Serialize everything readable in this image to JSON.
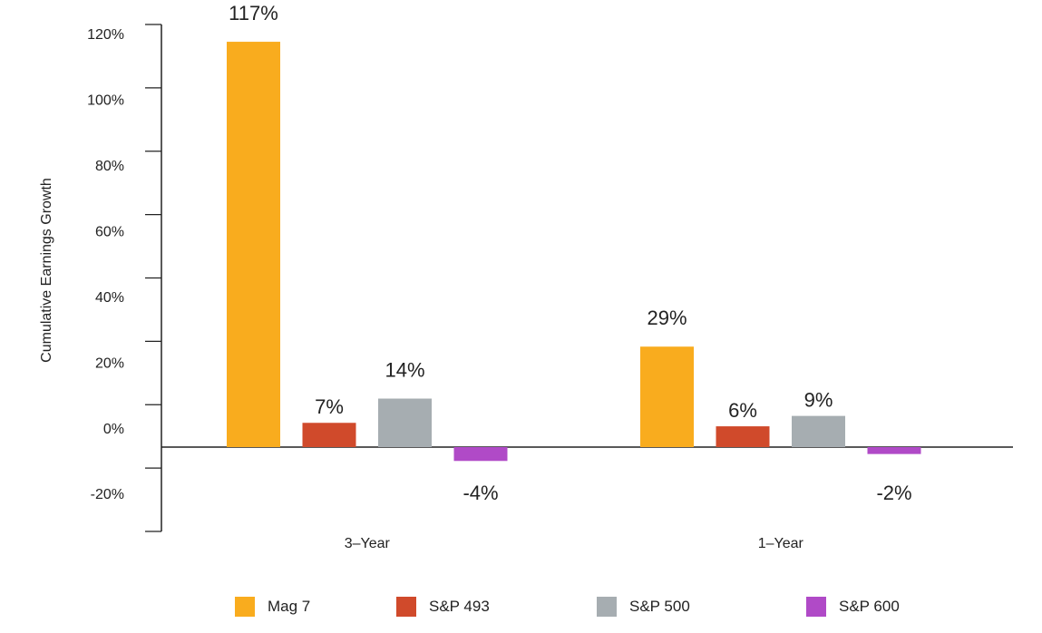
{
  "chart_data": {
    "type": "bar",
    "ylabel": "Cumulative Earnings Growth",
    "ylim": [
      -0.2,
      1.2
    ],
    "yticks": [
      "120%",
      "100%",
      "80%",
      "60%",
      "40%",
      "20%",
      "0%",
      "-20%"
    ],
    "categories": [
      "3–Year",
      "1–Year"
    ],
    "series": [
      {
        "name": "Mag 7",
        "color": "#F9AC1E",
        "values": [
          1.17,
          0.29
        ],
        "labels": [
          "117%",
          "29%"
        ]
      },
      {
        "name": "S&P 493",
        "color": "#D04A2B",
        "values": [
          0.07,
          0.06
        ],
        "labels": [
          "7%",
          "6%"
        ]
      },
      {
        "name": "S&P 500",
        "color": "#A6ADB1",
        "values": [
          0.14,
          0.09
        ],
        "labels": [
          "14%",
          "9%"
        ]
      },
      {
        "name": "S&P 600",
        "color": "#B04AC7",
        "values": [
          -0.04,
          -0.02
        ],
        "labels": [
          "-4%",
          "-2%"
        ]
      }
    ],
    "legend_position": "bottom",
    "grid": false
  }
}
